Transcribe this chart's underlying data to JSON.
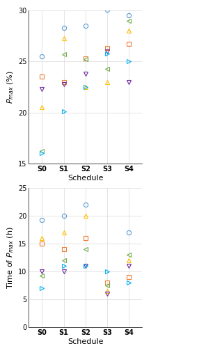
{
  "schedules": [
    "S0",
    "S1",
    "S2",
    "S3",
    "S4"
  ],
  "pmax": {
    "A": [
      25.5,
      28.3,
      28.5,
      30.1,
      29.5
    ],
    "B": [
      23.5,
      23.0,
      25.3,
      26.3,
      26.7
    ],
    "C": [
      20.5,
      27.3,
      22.5,
      23.0,
      28.0
    ],
    "D": [
      22.3,
      22.8,
      23.8,
      26.0,
      23.0
    ],
    "E": [
      16.2,
      25.7,
      25.2,
      24.3,
      29.0
    ],
    "F": [
      16.0,
      20.1,
      22.5,
      25.8,
      25.0
    ]
  },
  "time_pmax": {
    "A": [
      19.3,
      20.0,
      22.0,
      null,
      17.0
    ],
    "B": [
      15.0,
      14.0,
      16.0,
      8.0,
      9.0
    ],
    "C": [
      16.0,
      17.0,
      20.0,
      6.5,
      12.0
    ],
    "D": [
      10.0,
      10.0,
      11.0,
      6.0,
      11.0
    ],
    "E": [
      9.2,
      12.0,
      14.0,
      7.5,
      13.0
    ],
    "F": [
      7.0,
      11.0,
      11.0,
      10.0,
      8.0
    ]
  },
  "colors": {
    "A": "#5B9BD5",
    "B": "#ED7D31",
    "C": "#FFC000",
    "D": "#7030A0",
    "E": "#70AD47",
    "F": "#00B0F0"
  },
  "markers": {
    "A": "o",
    "B": "s",
    "C": "^",
    "D": "v",
    "E": "<",
    "F": ">"
  },
  "pmax_ylim": [
    15,
    30
  ],
  "pmax_yticks": [
    15,
    20,
    25,
    30
  ],
  "time_ylim": [
    0,
    25
  ],
  "time_yticks": [
    0,
    5,
    10,
    15,
    20,
    25
  ],
  "xlabel": "Schedule",
  "marker_size": 4.5,
  "marker_lw": 0.8
}
